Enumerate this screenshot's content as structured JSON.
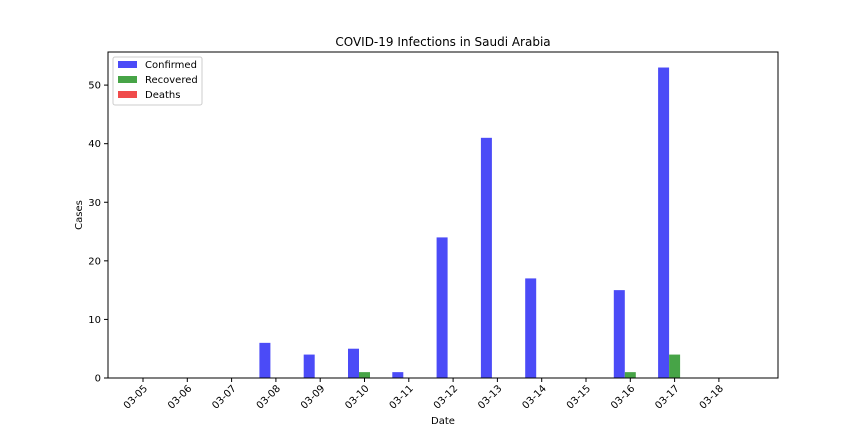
{
  "chart_data": {
    "type": "bar",
    "title": "COVID-19 Infections in Saudi Arabia",
    "xlabel": "Date",
    "ylabel": "Cases",
    "categories": [
      "03-05",
      "03-06",
      "03-07",
      "03-08",
      "03-09",
      "03-10",
      "03-11",
      "03-12",
      "03-13",
      "03-14",
      "03-15",
      "03-16",
      "03-17",
      "03-18"
    ],
    "series": [
      {
        "name": "Confirmed",
        "color": "#4b4bf7",
        "values": [
          0,
          0,
          0,
          6,
          4,
          5,
          1,
          24,
          41,
          17,
          0,
          15,
          53,
          0
        ]
      },
      {
        "name": "Recovered",
        "color": "#47a447",
        "values": [
          0,
          0,
          0,
          0,
          0,
          1,
          0,
          0,
          0,
          0,
          0,
          1,
          4,
          0
        ]
      },
      {
        "name": "Deaths",
        "color": "#f04b4b",
        "values": [
          0,
          0,
          0,
          0,
          0,
          0,
          0,
          0,
          0,
          0,
          0,
          0,
          0,
          0
        ]
      }
    ],
    "ylim": [
      0,
      55.65
    ],
    "yticks": [
      0,
      10,
      20,
      30,
      40,
      50
    ],
    "grid": false,
    "legend_position": "top-left"
  }
}
